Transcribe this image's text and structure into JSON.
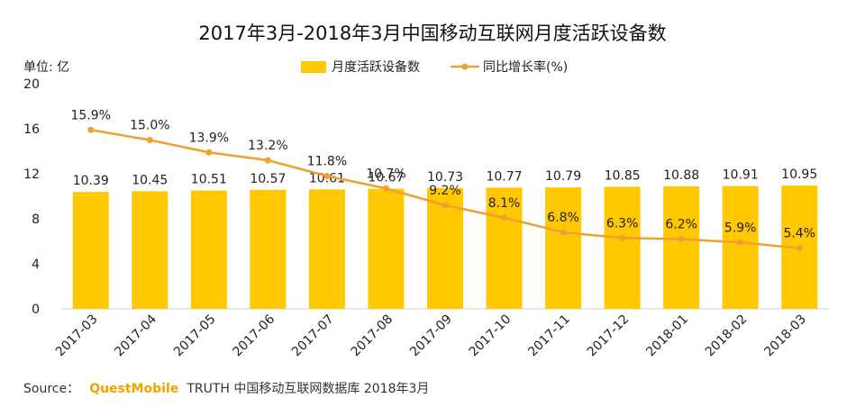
{
  "chart_data": {
    "type": "bar",
    "title": "2017年3月-2018年3月中国移动互联网月度活跃设备数",
    "unit_label": "单位: 亿",
    "categories": [
      "2017-03",
      "2017-04",
      "2017-05",
      "2017-06",
      "2017-07",
      "2017-08",
      "2017-09",
      "2017-10",
      "2017-11",
      "2017-12",
      "2018-01",
      "2018-02",
      "2018-03"
    ],
    "series": [
      {
        "name": "月度活跃设备数",
        "type": "bar",
        "color": "#FFC800",
        "values": [
          10.39,
          10.45,
          10.51,
          10.57,
          10.61,
          10.67,
          10.73,
          10.77,
          10.79,
          10.85,
          10.88,
          10.91,
          10.95
        ],
        "labels": [
          "10.39",
          "10.45",
          "10.51",
          "10.57",
          "10.61",
          "10.67",
          "10.73",
          "10.77",
          "10.79",
          "10.85",
          "10.88",
          "10.91",
          "10.95"
        ]
      },
      {
        "name": "同比增长率(%)",
        "type": "line",
        "color": "#F0A030",
        "values": [
          15.9,
          15.0,
          13.9,
          13.2,
          11.8,
          10.7,
          9.2,
          8.1,
          6.8,
          6.3,
          6.2,
          5.9,
          5.4
        ],
        "labels": [
          "15.9%",
          "15.0%",
          "13.9%",
          "13.2%",
          "11.8%",
          "10.7%",
          "9.2%",
          "8.1%",
          "6.8%",
          "6.3%",
          "6.2%",
          "5.9%",
          "5.4%"
        ]
      }
    ],
    "ylim": [
      0,
      20
    ],
    "yticks": [
      "0",
      "4",
      "8",
      "12",
      "16",
      "20"
    ],
    "legend_position": "top-center",
    "grid": false
  },
  "source": {
    "prefix": "Source：",
    "brand": "QuestMobile",
    "rest": "TRUTH 中国移动互联网数据库 2018年3月"
  }
}
